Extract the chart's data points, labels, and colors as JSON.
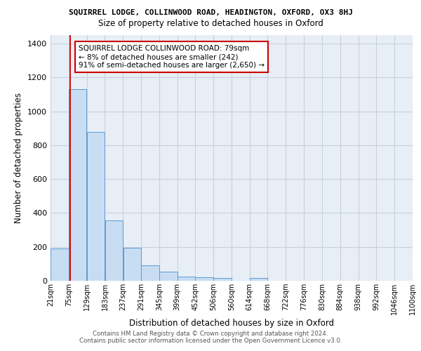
{
  "title1": "SQUIRREL LODGE, COLLINWOOD ROAD, HEADINGTON, OXFORD, OX3 8HJ",
  "title2": "Size of property relative to detached houses in Oxford",
  "xlabel": "Distribution of detached houses by size in Oxford",
  "ylabel": "Number of detached properties",
  "bar_values": [
    192,
    1130,
    880,
    355,
    193,
    93,
    52,
    25,
    22,
    18,
    0,
    18,
    0,
    0,
    0,
    0,
    0,
    0,
    0,
    0
  ],
  "bin_edges": [
    21,
    75,
    129,
    183,
    237,
    291,
    345,
    399,
    452,
    506,
    560,
    614,
    668,
    722,
    776,
    830,
    884,
    938,
    992,
    1046,
    1100
  ],
  "tick_labels": [
    "21sqm",
    "75sqm",
    "129sqm",
    "183sqm",
    "237sqm",
    "291sqm",
    "345sqm",
    "399sqm",
    "452sqm",
    "506sqm",
    "560sqm",
    "614sqm",
    "668sqm",
    "722sqm",
    "776sqm",
    "830sqm",
    "884sqm",
    "938sqm",
    "992sqm",
    "1046sqm",
    "1100sqm"
  ],
  "bar_color": "#c8ddf2",
  "bar_edge_color": "#5b9bd5",
  "grid_color": "#c8d0dc",
  "background_color": "#e8eef6",
  "property_line_x": 79,
  "property_line_color": "#cc0000",
  "annotation_text": "SQUIRREL LODGE COLLINWOOD ROAD: 79sqm\n← 8% of detached houses are smaller (242)\n91% of semi-detached houses are larger (2,650) →",
  "annotation_box_edge_color": "#cc0000",
  "footer_text": "Contains HM Land Registry data © Crown copyright and database right 2024.\nContains public sector information licensed under the Open Government Licence v3.0.",
  "ylim": [
    0,
    1450
  ],
  "yticks": [
    0,
    200,
    400,
    600,
    800,
    1000,
    1200,
    1400
  ]
}
